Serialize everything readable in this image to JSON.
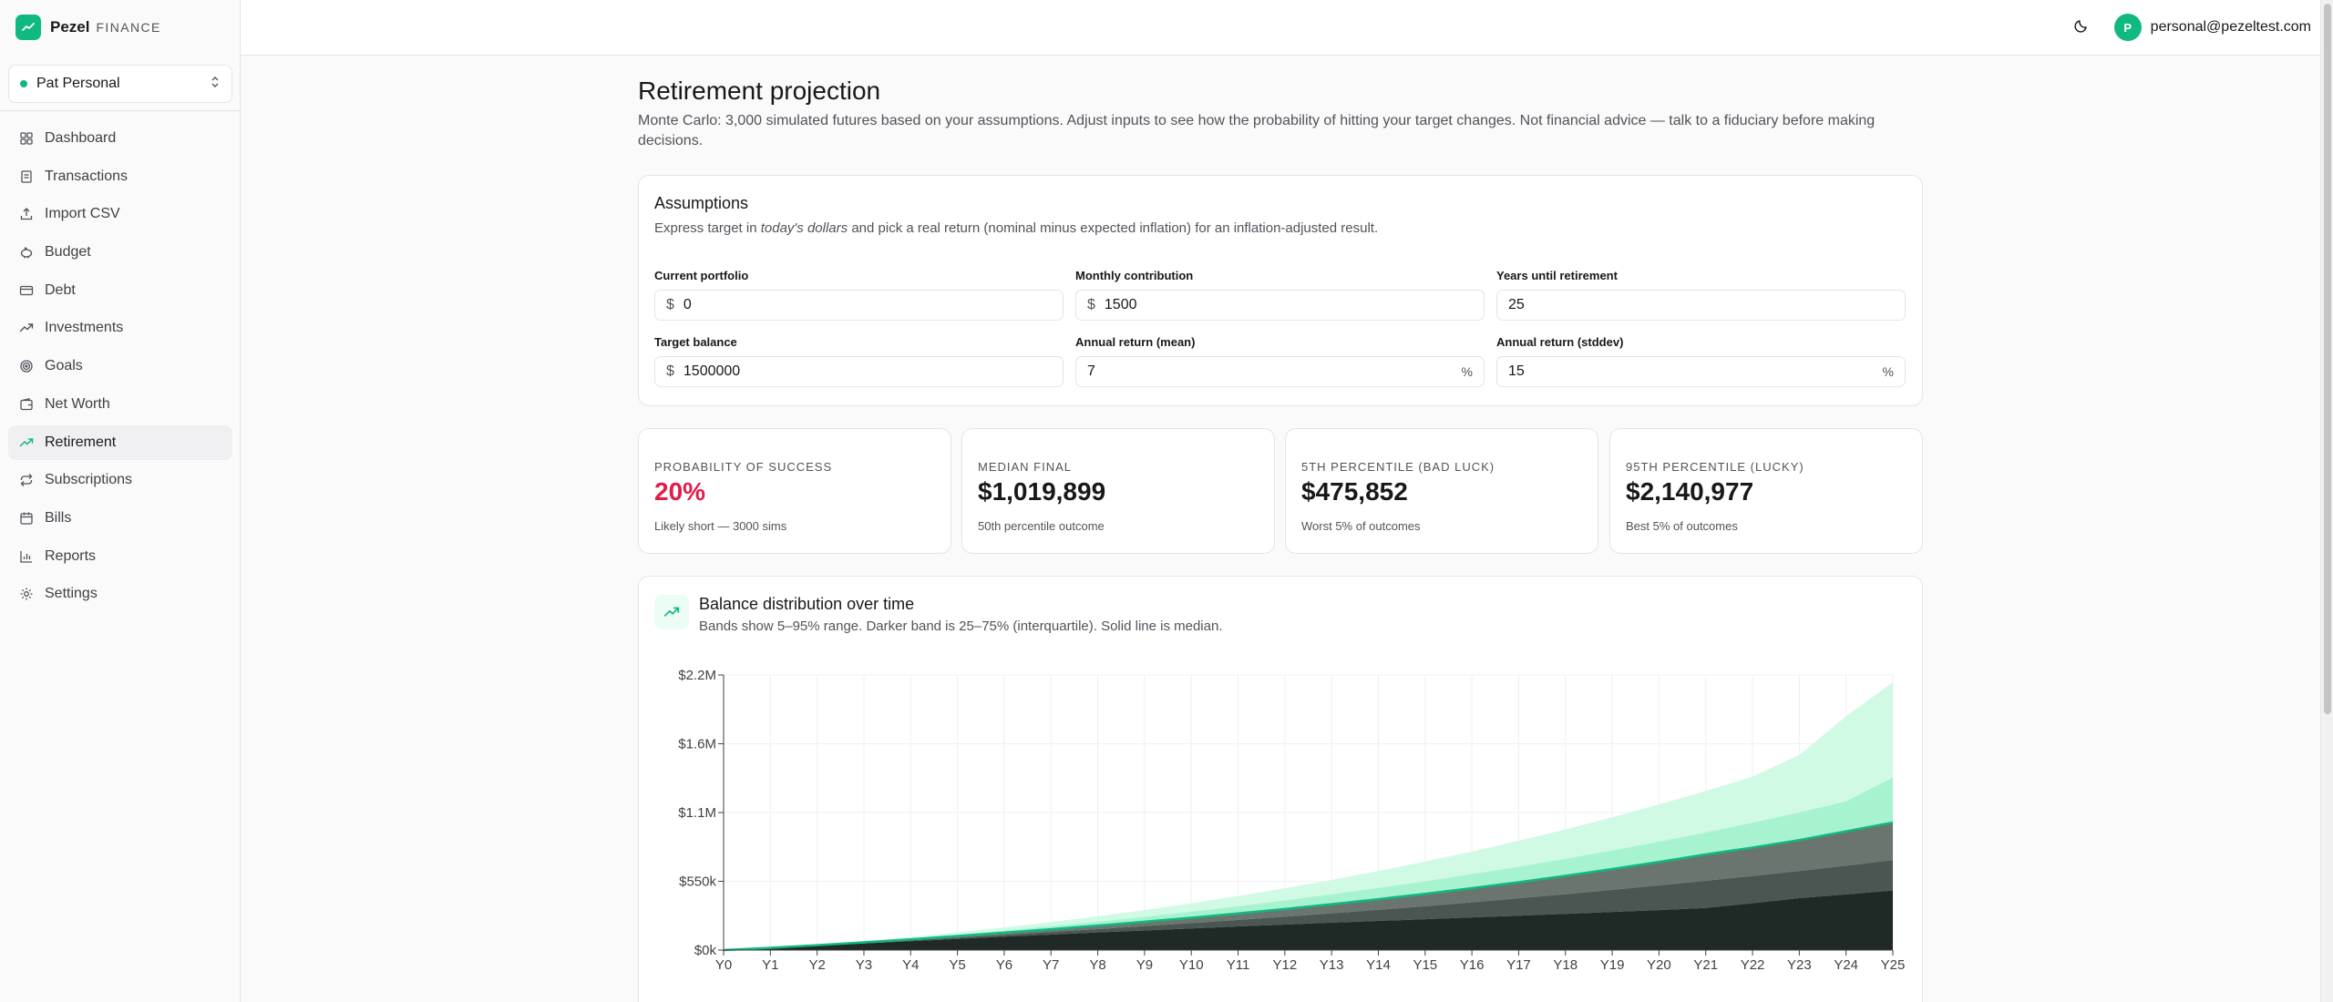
{
  "brand": {
    "name": "Pezel",
    "sub": "FINANCE"
  },
  "profile": {
    "name": "Pat Personal"
  },
  "nav": [
    {
      "label": "Dashboard",
      "icon": "dashboard-icon"
    },
    {
      "label": "Transactions",
      "icon": "receipt-icon"
    },
    {
      "label": "Import CSV",
      "icon": "upload-icon"
    },
    {
      "label": "Budget",
      "icon": "piggy-bank-icon"
    },
    {
      "label": "Debt",
      "icon": "credit-card-icon"
    },
    {
      "label": "Investments",
      "icon": "trending-up-icon"
    },
    {
      "label": "Goals",
      "icon": "target-icon"
    },
    {
      "label": "Net Worth",
      "icon": "wallet-icon"
    },
    {
      "label": "Retirement",
      "icon": "trending-up-icon",
      "active": true
    },
    {
      "label": "Subscriptions",
      "icon": "repeat-icon"
    },
    {
      "label": "Bills",
      "icon": "calendar-icon"
    },
    {
      "label": "Reports",
      "icon": "bar-chart-icon"
    },
    {
      "label": "Settings",
      "icon": "gear-icon"
    }
  ],
  "header": {
    "avatar_initial": "P",
    "email": "personal@pezeltest.com"
  },
  "page": {
    "title": "Retirement projection",
    "description": "Monte Carlo: 3,000 simulated futures based on your assumptions. Adjust inputs to see how the probability of hitting your target changes. Not financial advice — talk to a fiduciary before making decisions."
  },
  "assumptions": {
    "title": "Assumptions",
    "sub_prefix": "Express target in",
    "sub_emphasis": "today's dollars",
    "sub_suffix": "and pick a real return (nominal minus expected inflation) for an inflation-adjusted result.",
    "fields": {
      "current_portfolio": {
        "label": "Current portfolio",
        "prefix": "$",
        "value": "0"
      },
      "monthly_contribution": {
        "label": "Monthly contribution",
        "prefix": "$",
        "value": "1500"
      },
      "years_until_retirement": {
        "label": "Years until retirement",
        "value": "25"
      },
      "target_balance": {
        "label": "Target balance",
        "prefix": "$",
        "value": "1500000"
      },
      "annual_return_mean": {
        "label": "Annual return (mean)",
        "value": "7",
        "suffix": "%"
      },
      "annual_return_stddev": {
        "label": "Annual return (stddev)",
        "value": "15",
        "suffix": "%"
      }
    }
  },
  "stats": [
    {
      "label": "PROBABILITY OF SUCCESS",
      "value": "20%",
      "note": "Likely short — 3000 sims",
      "color": "#e11d48"
    },
    {
      "label": "MEDIAN FINAL",
      "value": "$1,019,899",
      "note": "50th percentile outcome"
    },
    {
      "label": "5TH PERCENTILE (BAD LUCK)",
      "value": "$475,852",
      "note": "Worst 5% of outcomes"
    },
    {
      "label": "95TH PERCENTILE (LUCKY)",
      "value": "$2,140,977",
      "note": "Best 5% of outcomes"
    }
  ],
  "chart_card": {
    "title": "Balance distribution over time",
    "subtitle": "Bands show 5–95% range. Darker band is 25–75% (interquartile). Solid line is median."
  },
  "chart_data": {
    "type": "area",
    "x": [
      "Y0",
      "Y1",
      "Y2",
      "Y3",
      "Y4",
      "Y5",
      "Y6",
      "Y7",
      "Y8",
      "Y9",
      "Y10",
      "Y11",
      "Y12",
      "Y13",
      "Y14",
      "Y15",
      "Y16",
      "Y17",
      "Y18",
      "Y19",
      "Y20",
      "Y21",
      "Y22",
      "Y23",
      "Y24",
      "Y25"
    ],
    "y_ticks": [
      "$0k",
      "$550k",
      "$1.1M",
      "$1.6M",
      "$2.2M"
    ],
    "ylim": [
      0,
      2200000
    ],
    "grid": true,
    "series": [
      {
        "role": "p5",
        "values": [
          0,
          17000,
          35000,
          53000,
          71000,
          89000,
          107000,
          124000,
          141000,
          157000,
          173000,
          189000,
          204000,
          219000,
          233000,
          247000,
          261000,
          275000,
          290000,
          305000,
          320000,
          337000,
          375000,
          415000,
          445000,
          475852
        ]
      },
      {
        "role": "p25",
        "values": [
          0,
          18000,
          37000,
          57000,
          78000,
          100000,
          122000,
          145000,
          168000,
          192000,
          216000,
          241000,
          267000,
          294000,
          322000,
          351000,
          382000,
          414000,
          447000,
          482000,
          518000,
          555000,
          593000,
          633000,
          675000,
          720000
        ]
      },
      {
        "role": "p50",
        "values": [
          0,
          18500,
          39000,
          62000,
          86000,
          112000,
          139000,
          167000,
          196000,
          227000,
          259000,
          293000,
          329000,
          367000,
          407000,
          450000,
          495000,
          543000,
          594000,
          648000,
          705000,
          765000,
          820000,
          880000,
          950000,
          1019899
        ]
      },
      {
        "role": "p75",
        "values": [
          0,
          19200,
          42000,
          67000,
          95000,
          125000,
          157000,
          191000,
          227000,
          266000,
          307000,
          351000,
          397000,
          446000,
          497000,
          551000,
          607000,
          667000,
          730000,
          797000,
          867000,
          941000,
          1019000,
          1101000,
          1190000,
          1380000
        ]
      },
      {
        "role": "p95",
        "values": [
          0,
          20000,
          45000,
          74000,
          106000,
          142000,
          181000,
          224000,
          270000,
          320000,
          374000,
          432000,
          494000,
          561000,
          632000,
          708000,
          788000,
          874000,
          965000,
          1062000,
          1165000,
          1272000,
          1388000,
          1560000,
          1870000,
          2140977
        ]
      }
    ],
    "colors": {
      "p5_p95": "#d1fae5",
      "p25_p75": "#6ee7b7",
      "median": "#10b981",
      "p5_fill": "#1f2925",
      "p25_fill": "#4b5551"
    }
  }
}
